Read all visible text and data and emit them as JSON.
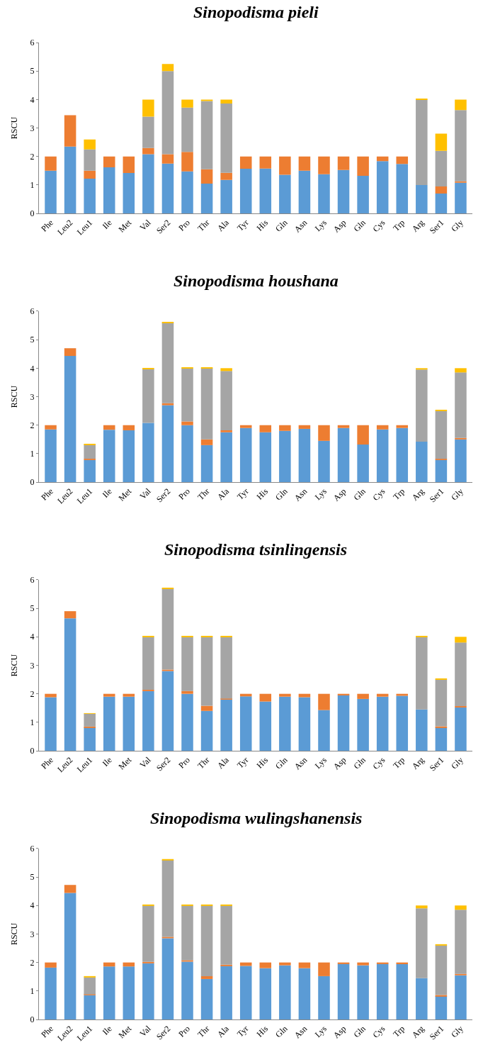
{
  "chart_data": [
    {
      "type": "bar",
      "title": "Sinopodisma pieli",
      "ylabel": "RSCU",
      "stacked": true,
      "categories": [
        "Phe",
        "Leu2",
        "Leu1",
        "Ile",
        "Met",
        "Val",
        "Ser2",
        "Pro",
        "Thr",
        "Ala",
        "Tyr",
        "His",
        "Gln",
        "Asn",
        "Lys",
        "Asp",
        "Gln",
        "Cys",
        "Trp",
        "Arg",
        "Ser1",
        "Gly"
      ],
      "ylim": [
        0,
        6
      ],
      "yticks": [
        0,
        1,
        2,
        3,
        4,
        5,
        6
      ],
      "series": [
        {
          "color": "#5b9bd5",
          "values": [
            1.5,
            2.35,
            1.22,
            1.62,
            1.42,
            2.08,
            1.75,
            1.48,
            1.05,
            1.18,
            1.57,
            1.58,
            1.36,
            1.5,
            1.38,
            1.53,
            1.32,
            1.84,
            1.74,
            1.0,
            0.7,
            1.08
          ]
        },
        {
          "color": "#ed7d31",
          "values": [
            0.5,
            1.1,
            0.28,
            0.38,
            0.58,
            0.22,
            0.33,
            0.68,
            0.5,
            0.25,
            0.43,
            0.42,
            0.64,
            0.5,
            0.62,
            0.47,
            0.68,
            0.16,
            0.26,
            0,
            0.25,
            0.05
          ]
        },
        {
          "color": "#a5a5a5",
          "values": [
            0,
            0,
            0.75,
            0,
            0,
            1.1,
            2.92,
            1.56,
            2.4,
            2.43,
            0,
            0,
            0,
            0,
            0,
            0,
            0,
            0,
            0,
            3.0,
            1.25,
            2.5
          ]
        },
        {
          "color": "#ffc000",
          "values": [
            0,
            0,
            0.35,
            0,
            0,
            0.6,
            0.25,
            0.28,
            0.05,
            0.14,
            0,
            0,
            0,
            0,
            0,
            0,
            0,
            0,
            0,
            0.02,
            0.6,
            0.37
          ]
        }
      ]
    },
    {
      "type": "bar",
      "title": "Sinopodisma houshana",
      "ylabel": "RSCU",
      "stacked": true,
      "categories": [
        "Phe",
        "Leu2",
        "Leu1",
        "Ile",
        "Met",
        "Val",
        "Ser2",
        "Pro",
        "Thr",
        "Ala",
        "Tyr",
        "His",
        "Gln",
        "Asn",
        "Lys",
        "Asp",
        "Gln",
        "Cys",
        "Trp",
        "Arg",
        "Ser1",
        "Gly"
      ],
      "ylim": [
        0,
        6
      ],
      "yticks": [
        0,
        1,
        2,
        3,
        4,
        5,
        6
      ],
      "series": [
        {
          "color": "#5b9bd5",
          "values": [
            1.85,
            4.43,
            0.78,
            1.84,
            1.82,
            2.08,
            2.7,
            2.0,
            1.3,
            1.75,
            1.9,
            1.75,
            1.8,
            1.87,
            1.45,
            1.9,
            1.32,
            1.85,
            1.9,
            1.42,
            0.78,
            1.5
          ]
        },
        {
          "color": "#ed7d31",
          "values": [
            0.15,
            0.27,
            0.04,
            0.16,
            0.18,
            0,
            0.07,
            0.13,
            0.2,
            0.07,
            0.1,
            0.25,
            0.2,
            0.13,
            0.55,
            0.1,
            0.68,
            0.15,
            0.1,
            0,
            0.04,
            0.05
          ]
        },
        {
          "color": "#a5a5a5",
          "values": [
            0,
            0,
            0.5,
            0,
            0,
            1.9,
            2.83,
            1.87,
            2.5,
            2.08,
            0,
            0,
            0,
            0,
            0,
            0,
            0,
            0,
            0,
            2.53,
            1.68,
            2.3
          ]
        },
        {
          "color": "#ffc000",
          "values": [
            0,
            0,
            0.02,
            0,
            0,
            0.02,
            0.02,
            0.02,
            0.02,
            0.1,
            0,
            0,
            0,
            0,
            0,
            0,
            0,
            0,
            0,
            0.05,
            0.02,
            0.15
          ]
        }
      ]
    },
    {
      "type": "bar",
      "title": "Sinopodisma tsinlingensis",
      "ylabel": "RSCU",
      "stacked": true,
      "categories": [
        "Phe",
        "Leu2",
        "Leu1",
        "Ile",
        "Met",
        "Val",
        "Ser2",
        "Pro",
        "Thr",
        "Ala",
        "Tyr",
        "His",
        "Gln",
        "Asn",
        "Lys",
        "Asp",
        "Gln",
        "Cys",
        "Trp",
        "Arg",
        "Ser1",
        "Gly"
      ],
      "ylim": [
        0,
        6
      ],
      "yticks": [
        0,
        1,
        2,
        3,
        4,
        5,
        6
      ],
      "series": [
        {
          "color": "#5b9bd5",
          "values": [
            1.88,
            4.65,
            0.82,
            1.9,
            1.9,
            2.1,
            2.8,
            2.0,
            1.4,
            1.8,
            1.91,
            1.73,
            1.9,
            1.88,
            1.43,
            1.96,
            1.82,
            1.9,
            1.93,
            1.45,
            0.82,
            1.52
          ]
        },
        {
          "color": "#ed7d31",
          "values": [
            0.12,
            0.25,
            0.03,
            0.1,
            0.1,
            0.04,
            0.05,
            0.1,
            0.18,
            0.03,
            0.09,
            0.27,
            0.1,
            0.12,
            0.57,
            0.04,
            0.18,
            0.1,
            0.07,
            0,
            0.04,
            0.05
          ]
        },
        {
          "color": "#a5a5a5",
          "values": [
            0,
            0,
            0.45,
            0,
            0,
            1.86,
            2.85,
            1.9,
            2.42,
            2.17,
            0,
            0,
            0,
            0,
            0,
            0,
            0,
            0,
            0,
            2.55,
            1.64,
            2.23
          ]
        },
        {
          "color": "#ffc000",
          "values": [
            0,
            0,
            0.02,
            0,
            0,
            0.02,
            0.02,
            0.02,
            0.02,
            0.02,
            0,
            0,
            0,
            0,
            0,
            0,
            0,
            0,
            0,
            0.02,
            0.02,
            0.2
          ]
        }
      ]
    },
    {
      "type": "bar",
      "title": "Sinopodisma wulingshanensis",
      "ylabel": "RSCU",
      "stacked": true,
      "categories": [
        "Phe",
        "Leu2",
        "Leu1",
        "Ile",
        "Met",
        "Val",
        "Ser2",
        "Pro",
        "Thr",
        "Ala",
        "Tyr",
        "His",
        "Gln",
        "Asn",
        "Lys",
        "Asp",
        "Gln",
        "Cys",
        "Trp",
        "Arg",
        "Ser1",
        "Gly"
      ],
      "ylim": [
        0,
        6
      ],
      "yticks": [
        0,
        1,
        2,
        3,
        4,
        5,
        6
      ],
      "series": [
        {
          "color": "#5b9bd5",
          "values": [
            1.82,
            4.44,
            0.85,
            1.86,
            1.86,
            1.97,
            2.85,
            2.03,
            1.42,
            1.88,
            1.88,
            1.8,
            1.9,
            1.8,
            1.52,
            1.96,
            1.9,
            1.96,
            1.94,
            1.45,
            0.82,
            1.55
          ]
        },
        {
          "color": "#ed7d31",
          "values": [
            0.18,
            0.28,
            0.03,
            0.14,
            0.14,
            0.05,
            0.05,
            0.05,
            0.1,
            0.04,
            0.12,
            0.2,
            0.1,
            0.2,
            0.48,
            0.04,
            0.1,
            0.04,
            0.06,
            0,
            0.04,
            0.05
          ]
        },
        {
          "color": "#a5a5a5",
          "values": [
            0,
            0,
            0.6,
            0,
            0,
            1.98,
            2.7,
            1.92,
            2.48,
            2.08,
            0,
            0,
            0,
            0,
            0,
            0,
            0,
            0,
            0,
            2.45,
            1.74,
            2.25
          ]
        },
        {
          "color": "#ffc000",
          "values": [
            0,
            0,
            0.02,
            0,
            0,
            0.02,
            0.02,
            0.02,
            0.02,
            0.02,
            0,
            0,
            0,
            0,
            0,
            0,
            0,
            0,
            0,
            0.1,
            0.02,
            0.15
          ]
        }
      ]
    }
  ]
}
